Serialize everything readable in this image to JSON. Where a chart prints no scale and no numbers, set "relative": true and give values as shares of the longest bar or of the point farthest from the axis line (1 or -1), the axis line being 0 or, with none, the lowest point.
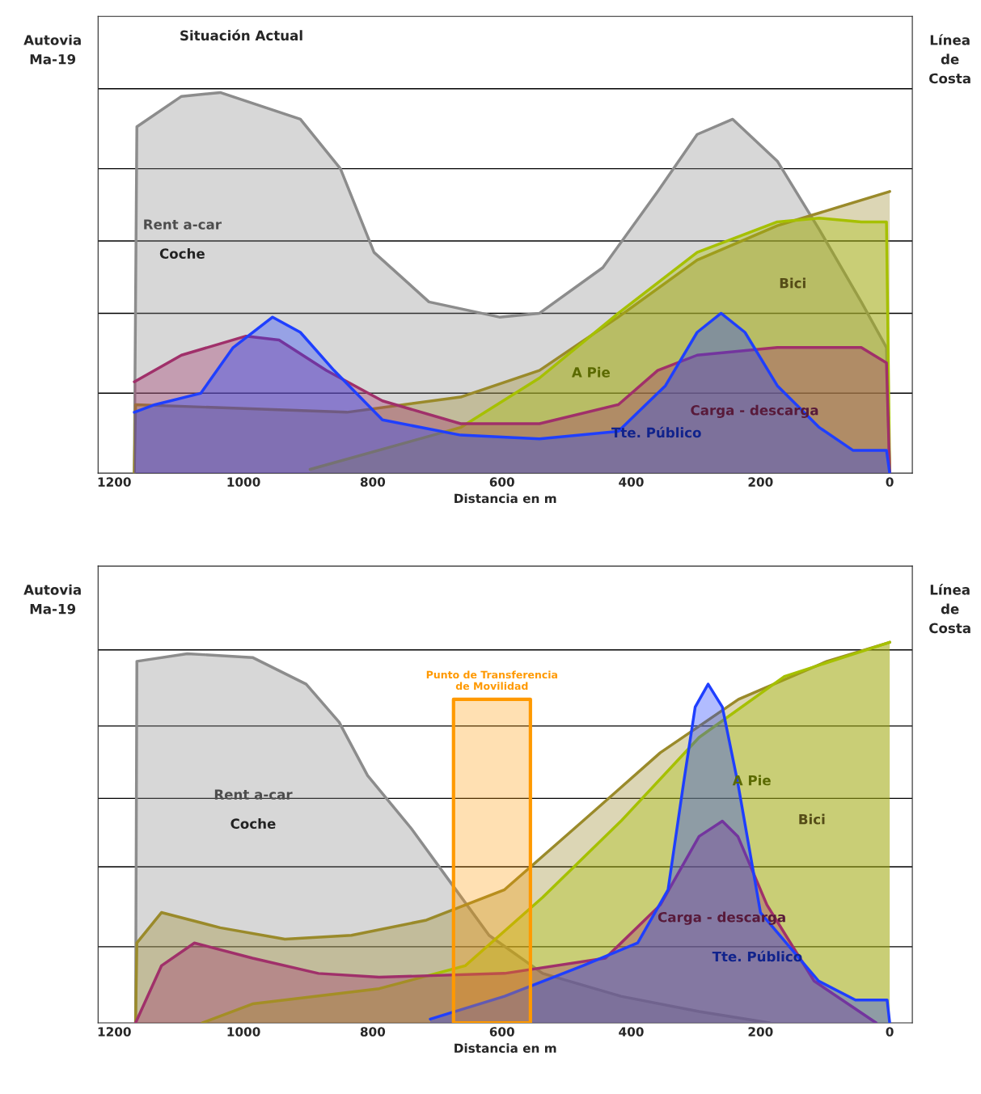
{
  "chart_data": [
    {
      "type": "area",
      "title": "Situación Actual",
      "xlabel": "Distancia en m",
      "relative": true,
      "xlim": [
        1225,
        -35
      ],
      "xticks": [
        1200,
        1000,
        800,
        600,
        400,
        200,
        0
      ],
      "legend": false,
      "series": [
        {
          "name": "Rent a-car",
          "color": "#8c8c8c",
          "x": [
            1169,
            1165,
            1096,
            1036,
            912,
            850,
            798,
            713,
            604,
            542,
            444,
            359,
            298,
            243,
            174,
            109,
            44,
            5,
            0
          ],
          "values": [
            0,
            0.91,
            0.99,
            1.0,
            0.93,
            0.8,
            0.58,
            0.45,
            0.41,
            0.42,
            0.54,
            0.74,
            0.89,
            0.93,
            0.82,
            0.64,
            0.45,
            0.33,
            0
          ]
        },
        {
          "name": "Bici",
          "color": "#9a8a2a",
          "x": [
            1169,
            1167,
            840,
            664,
            542,
            420,
            298,
            174,
            0
          ],
          "values": [
            0,
            0.18,
            0.16,
            0.2,
            0.27,
            0.41,
            0.56,
            0.65,
            0.74
          ]
        },
        {
          "name": "A Pie",
          "color": "#a6c000",
          "x": [
            897,
            664,
            542,
            420,
            298,
            174,
            109,
            44,
            5,
            0
          ],
          "values": [
            0.01,
            0.12,
            0.25,
            0.42,
            0.58,
            0.66,
            0.67,
            0.66,
            0.66,
            0
          ]
        },
        {
          "name": "Carga - descarga",
          "color": "#a0306a",
          "x": [
            1169,
            1096,
            996,
            945,
            872,
            785,
            664,
            542,
            420,
            359,
            298,
            174,
            44,
            5,
            0
          ],
          "values": [
            0.24,
            0.31,
            0.36,
            0.35,
            0.27,
            0.19,
            0.13,
            0.13,
            0.18,
            0.27,
            0.31,
            0.33,
            0.33,
            0.29,
            0
          ]
        },
        {
          "name": "Tte. Público",
          "color": "#1f3fff",
          "x": [
            1169,
            1137,
            1066,
            1016,
            955,
            912,
            860,
            785,
            664,
            542,
            420,
            347,
            298,
            261,
            224,
            174,
            109,
            57,
            5,
            0
          ],
          "values": [
            0.16,
            0.18,
            0.21,
            0.33,
            0.41,
            0.37,
            0.27,
            0.14,
            0.1,
            0.09,
            0.11,
            0.23,
            0.37,
            0.42,
            0.37,
            0.23,
            0.12,
            0.06,
            0.06,
            0
          ]
        }
      ],
      "ref_lines": [
        {
          "axis": "y",
          "value": 1.01,
          "color": "#000000"
        },
        {
          "axis": "y",
          "value": 0.8,
          "color": "#000000"
        },
        {
          "axis": "y",
          "value": 0.61,
          "color": "#000000"
        },
        {
          "axis": "y",
          "value": 0.42,
          "color": "#000000"
        },
        {
          "axis": "y",
          "value": 0.21,
          "color": "#000000"
        }
      ],
      "annotations": [
        "Autovia\nMa-19",
        "Línea\nde\nCosta",
        "Coche"
      ]
    },
    {
      "type": "area",
      "xlabel": "Distancia en m",
      "relative": true,
      "xlim": [
        1225,
        -35
      ],
      "xticks": [
        1200,
        1000,
        800,
        600,
        400,
        200,
        0
      ],
      "legend": false,
      "series": [
        {
          "name": "Rent a-car",
          "color": "#8c8c8c",
          "x": [
            1167,
            1165,
            1087,
            986,
            903,
            852,
            808,
            740,
            680,
            620,
            537,
            416,
            295,
            186
          ],
          "values": [
            0,
            0.95,
            0.97,
            0.96,
            0.89,
            0.79,
            0.65,
            0.51,
            0.37,
            0.23,
            0.13,
            0.07,
            0.03,
            0
          ]
        },
        {
          "name": "Bici",
          "color": "#9a8a2a",
          "x": [
            1167,
            1165,
            1127,
            1036,
            936,
            833,
            717,
            596,
            475,
            355,
            234,
            97,
            0
          ],
          "values": [
            0,
            0.21,
            0.29,
            0.25,
            0.22,
            0.23,
            0.27,
            0.35,
            0.53,
            0.71,
            0.85,
            0.95,
            1.0
          ]
        },
        {
          "name": "A Pie",
          "color": "#a6c000",
          "x": [
            1064,
            986,
            790,
            657,
            537,
            416,
            295,
            163,
            0
          ],
          "values": [
            0,
            0.05,
            0.09,
            0.15,
            0.33,
            0.53,
            0.75,
            0.91,
            1.0
          ]
        },
        {
          "name": "Carga - descarga",
          "color": "#a0306a",
          "x": [
            1167,
            1127,
            1076,
            986,
            884,
            790,
            596,
            440,
            355,
            295,
            259,
            235,
            190,
            117,
            21
          ],
          "values": [
            0,
            0.15,
            0.21,
            0.17,
            0.13,
            0.12,
            0.13,
            0.17,
            0.31,
            0.49,
            0.53,
            0.49,
            0.31,
            0.11,
            0
          ]
        },
        {
          "name": "Tte. Público",
          "color": "#1f3fff",
          "x": [
            711,
            596,
            475,
            390,
            343,
            319,
            301,
            281,
            259,
            235,
            200,
            110,
            53,
            4,
            0
          ],
          "values": [
            0.01,
            0.07,
            0.15,
            0.21,
            0.35,
            0.63,
            0.83,
            0.89,
            0.83,
            0.63,
            0.29,
            0.11,
            0.06,
            0.06,
            0
          ]
        }
      ],
      "bands": [
        {
          "axis": "x",
          "from": 675,
          "to": 556,
          "label": "Punto de Transferencia\nde Movilidad",
          "color": "#ff9900"
        }
      ],
      "ref_lines": [
        {
          "axis": "y",
          "value": 0.98,
          "color": "#000000"
        },
        {
          "axis": "y",
          "value": 0.78,
          "color": "#000000"
        },
        {
          "axis": "y",
          "value": 0.59,
          "color": "#000000"
        },
        {
          "axis": "y",
          "value": 0.41,
          "color": "#000000"
        },
        {
          "axis": "y",
          "value": 0.2,
          "color": "#000000"
        }
      ],
      "annotations": [
        "Autovia\nMa-19",
        "Línea\nde\nCosta",
        "Coche"
      ]
    }
  ]
}
